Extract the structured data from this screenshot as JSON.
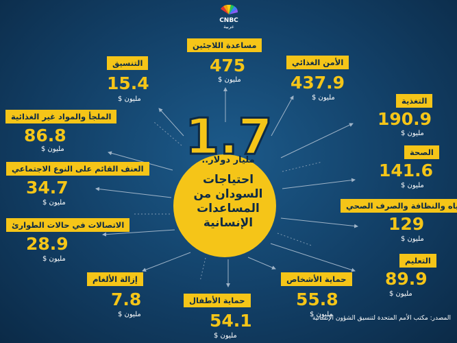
{
  "logo": {
    "name": "CNBC",
    "sub": "عربية"
  },
  "center": {
    "number": "1.7",
    "subtitle": "مليار دولار..",
    "title_lines": [
      "احتياجات",
      "السودان من",
      "المساعدات",
      "الإنسانية"
    ]
  },
  "items": [
    {
      "label": "مساعدة اللاجئين",
      "value": "475",
      "unit": "مليون $"
    },
    {
      "label": "الأمن الغذائي",
      "value": "437.9",
      "unit": "مليون $"
    },
    {
      "label": "التنسيق",
      "value": "15.4",
      "unit": "مليون $"
    },
    {
      "label": "التغذية",
      "value": "190.9",
      "unit": "مليون $"
    },
    {
      "label": "الملجأ والمواد غير الغذائية",
      "value": "86.8",
      "unit": "مليون $"
    },
    {
      "label": "الصحة",
      "value": "141.6",
      "unit": "مليون $"
    },
    {
      "label": "العنف القائم على النوع الاجتماعي",
      "value": "34.7",
      "unit": "مليون $"
    },
    {
      "label": "المياه والنظافة والصرف الصحي",
      "value": "129",
      "unit": "مليون $"
    },
    {
      "label": "الاتصالات في حالات الطوارئ",
      "value": "28.9",
      "unit": "مليون $"
    },
    {
      "label": "التعليم",
      "value": "89.9",
      "unit": "مليون $"
    },
    {
      "label": "إزالة الألغام",
      "value": "7.8",
      "unit": "مليون $"
    },
    {
      "label": "حماية الأشخاص",
      "value": "55.8",
      "unit": "مليون $"
    },
    {
      "label": "حماية الأطفال",
      "value": "54.1",
      "unit": "مليون $"
    }
  ],
  "source": "المصدر: مكتب الأمم المتحدة لتنسيق الشؤون الإنسانية",
  "colors": {
    "accent": "#f5c518",
    "background": "#123f66",
    "text_dark": "#0d2a45"
  }
}
